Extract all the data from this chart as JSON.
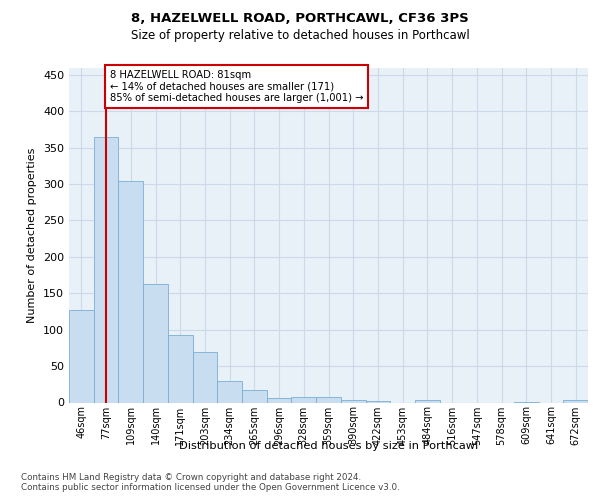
{
  "title1": "8, HAZELWELL ROAD, PORTHCAWL, CF36 3PS",
  "title2": "Size of property relative to detached houses in Porthcawl",
  "xlabel": "Distribution of detached houses by size in Porthcawl",
  "ylabel": "Number of detached properties",
  "bar_labels": [
    "46sqm",
    "77sqm",
    "109sqm",
    "140sqm",
    "171sqm",
    "203sqm",
    "234sqm",
    "265sqm",
    "296sqm",
    "328sqm",
    "359sqm",
    "390sqm",
    "422sqm",
    "453sqm",
    "484sqm",
    "516sqm",
    "547sqm",
    "578sqm",
    "609sqm",
    "641sqm",
    "672sqm"
  ],
  "bar_values": [
    127,
    365,
    304,
    163,
    93,
    69,
    29,
    17,
    6,
    8,
    8,
    4,
    2,
    0,
    3,
    0,
    0,
    0,
    1,
    0,
    3
  ],
  "bar_color": "#c9ddf0",
  "bar_edge_color": "#7aafd4",
  "annotation_line_color": "#cc0000",
  "annotation_box_text": "8 HAZELWELL ROAD: 81sqm\n← 14% of detached houses are smaller (171)\n85% of semi-detached houses are larger (1,001) →",
  "grid_color": "#ccd9e8",
  "background_color": "#e8f0f8",
  "ylim": [
    0,
    460
  ],
  "yticks": [
    0,
    50,
    100,
    150,
    200,
    250,
    300,
    350,
    400,
    450
  ],
  "footer": "Contains HM Land Registry data © Crown copyright and database right 2024.\nContains public sector information licensed under the Open Government Licence v3.0."
}
